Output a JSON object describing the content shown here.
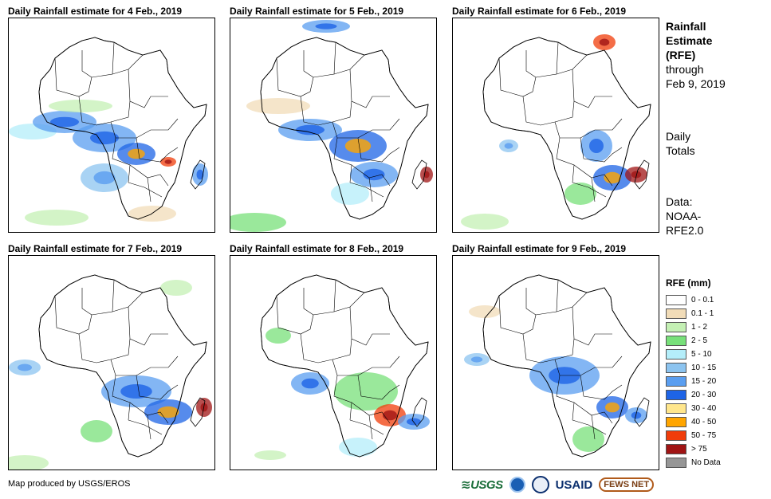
{
  "panels": [
    {
      "title": "Daily Rainfall estimate for 4 Feb., 2019"
    },
    {
      "title": "Daily Rainfall estimate for 5 Feb., 2019"
    },
    {
      "title": "Daily Rainfall estimate for 6 Feb., 2019"
    },
    {
      "title": "Daily Rainfall estimate for 7 Feb., 2019"
    },
    {
      "title": "Daily Rainfall estimate for 8 Feb., 2019"
    },
    {
      "title": "Daily Rainfall estimate for 9 Feb., 2019"
    }
  ],
  "side": {
    "heading_line1": "Rainfall",
    "heading_line2": "Estimate",
    "heading_line3": "(RFE)",
    "through_line1": "through",
    "through_line2": "Feb 9, 2019",
    "daily_line1": "Daily",
    "daily_line2": "Totals",
    "data_line1": "Data:",
    "data_line2": "NOAA-",
    "data_line3": "RFE2.0"
  },
  "legend": {
    "title": "RFE (mm)",
    "items": [
      {
        "label": "0 - 0.1",
        "color": "#ffffff"
      },
      {
        "label": "0.1 - 1",
        "color": "#f1dcb8"
      },
      {
        "label": "1 - 2",
        "color": "#c4f0b4"
      },
      {
        "label": "2 - 5",
        "color": "#78e07a"
      },
      {
        "label": "5 - 10",
        "color": "#b4eefa"
      },
      {
        "label": "10 - 15",
        "color": "#8cc4f0"
      },
      {
        "label": "15 - 20",
        "color": "#5a9ef0"
      },
      {
        "label": "20 - 30",
        "color": "#1e64e6"
      },
      {
        "label": "30 - 40",
        "color": "#ffe68c"
      },
      {
        "label": "40 - 50",
        "color": "#ffa500"
      },
      {
        "label": "50 - 75",
        "color": "#f03c0a"
      },
      {
        "label": "> 75",
        "color": "#a01414"
      },
      {
        "label": "No Data",
        "color": "#969696"
      }
    ]
  },
  "footer": {
    "credit": "Map produced by USGS/EROS",
    "logo_usgs": "≋USGS",
    "logo_usaid": "USAID",
    "logo_fews": "FEWS NET"
  }
}
